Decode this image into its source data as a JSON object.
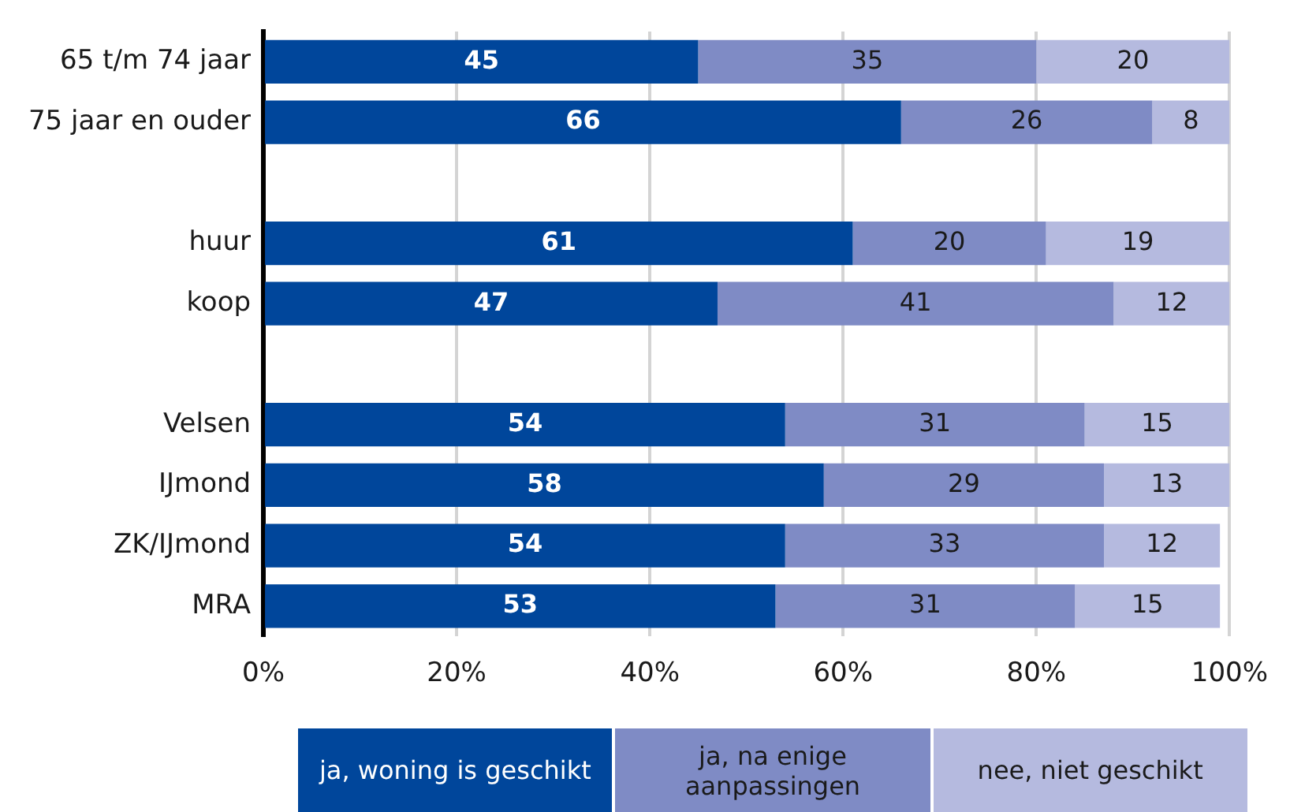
{
  "chart_data": {
    "type": "bar",
    "orientation": "horizontal",
    "stacked": true,
    "categories": [
      "65 t/m 74 jaar",
      "75 jaar en ouder",
      null,
      "huur",
      "koop",
      null,
      "Velsen",
      "IJmond",
      "ZK/IJmond",
      "MRA"
    ],
    "series": [
      {
        "name": "ja, woning is geschikt",
        "color": "#00469b",
        "values": [
          45,
          66,
          null,
          61,
          47,
          null,
          54,
          58,
          54,
          53
        ]
      },
      {
        "name": "ja, na enige aanpassingen",
        "color": "#7f8bc5",
        "values": [
          35,
          26,
          null,
          20,
          41,
          null,
          31,
          29,
          33,
          31
        ]
      },
      {
        "name": "nee, niet geschikt",
        "color": "#b5badf",
        "values": [
          20,
          8,
          null,
          19,
          12,
          null,
          15,
          13,
          12,
          15
        ]
      }
    ],
    "xlim": [
      0,
      100
    ],
    "xticks": [
      {
        "value": 0,
        "label": "0%"
      },
      {
        "value": 20,
        "label": "20%"
      },
      {
        "value": 40,
        "label": "40%"
      },
      {
        "value": 60,
        "label": "60%"
      },
      {
        "value": 80,
        "label": "80%"
      },
      {
        "value": 100,
        "label": "100%"
      }
    ],
    "grid": "x",
    "legend": "bottom",
    "data_labels": true
  }
}
